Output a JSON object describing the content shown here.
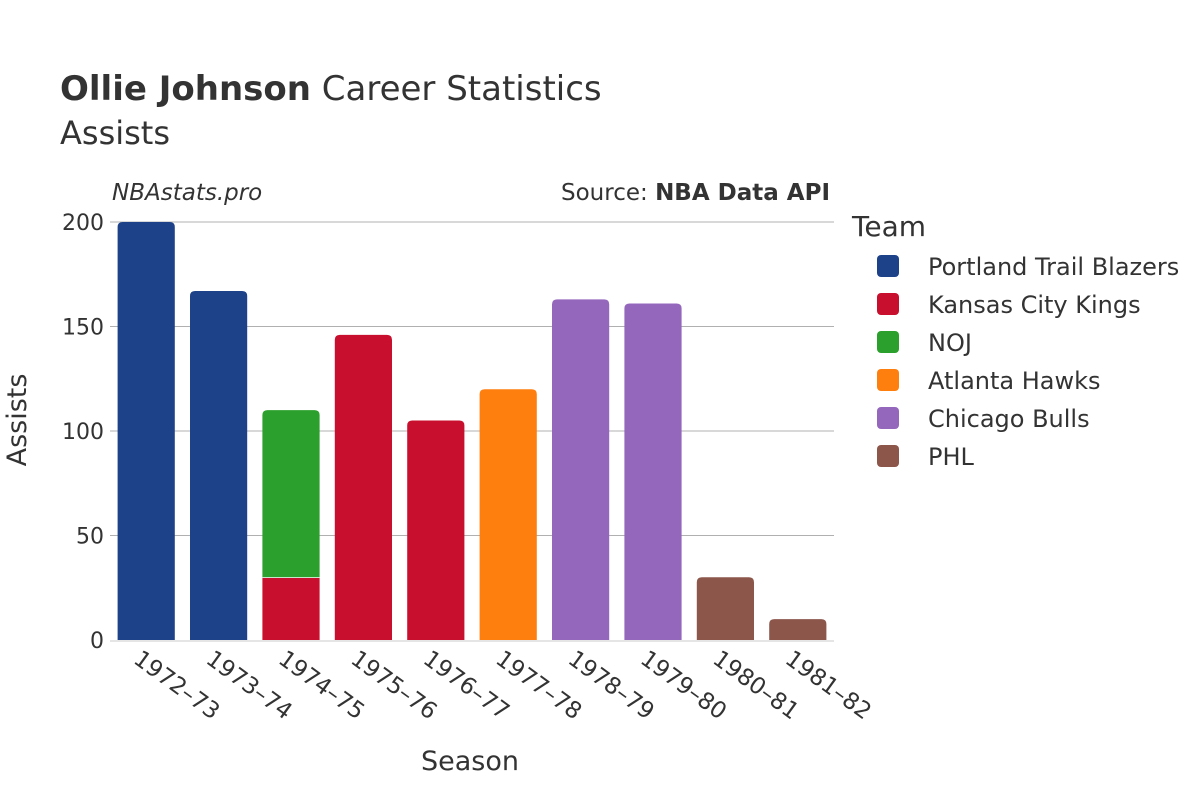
{
  "title": {
    "name": "Ollie Johnson",
    "rest": " Career Statistics",
    "subtitle": "Assists"
  },
  "watermark": "NBAstats.pro",
  "source": {
    "prefix": "Source: ",
    "name": "NBA Data API"
  },
  "legend": {
    "title": "Team",
    "placement": "right"
  },
  "chart_data": {
    "type": "bar",
    "stacked": true,
    "categories": [
      "1972–73",
      "1973–74",
      "1974–75",
      "1975–76",
      "1976–77",
      "1977–78",
      "1978–79",
      "1979–80",
      "1980–81",
      "1981–82"
    ],
    "series": [
      {
        "name": "Portland Trail Blazers",
        "color": "#1d428a",
        "values": [
          200,
          167,
          0,
          0,
          0,
          0,
          0,
          0,
          0,
          0
        ]
      },
      {
        "name": "Kansas City Kings",
        "color": "#c8102e",
        "values": [
          0,
          0,
          30,
          146,
          105,
          0,
          0,
          0,
          0,
          0
        ]
      },
      {
        "name": "NOJ",
        "color": "#2ca02c",
        "values": [
          0,
          0,
          80,
          0,
          0,
          0,
          0,
          0,
          0,
          0
        ]
      },
      {
        "name": "Atlanta Hawks",
        "color": "#ff7f0e",
        "values": [
          0,
          0,
          0,
          0,
          0,
          120,
          0,
          0,
          0,
          0
        ]
      },
      {
        "name": "Chicago Bulls",
        "color": "#9467bd",
        "values": [
          0,
          0,
          0,
          0,
          0,
          0,
          163,
          161,
          0,
          0
        ]
      },
      {
        "name": "PHL",
        "color": "#8c564b",
        "values": [
          0,
          0,
          0,
          0,
          0,
          0,
          0,
          0,
          30,
          10
        ]
      }
    ],
    "xlabel": "Season",
    "ylabel": "Assists",
    "ylim": [
      0,
      200
    ],
    "yticks": [
      0,
      50,
      100,
      150,
      200
    ],
    "grid": true
  }
}
